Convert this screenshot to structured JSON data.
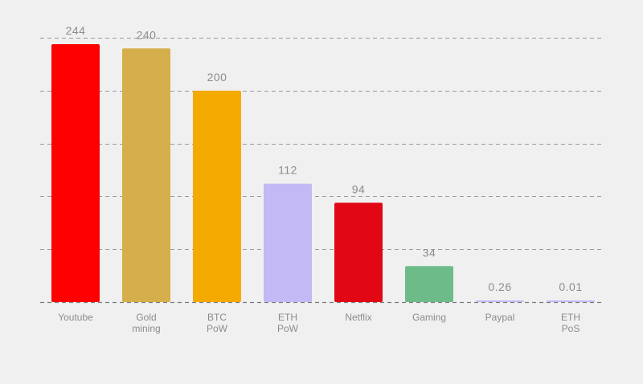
{
  "chart_data": {
    "type": "bar",
    "categories": [
      [
        "Youtube"
      ],
      [
        "Gold",
        "mining"
      ],
      [
        "BTC",
        "PoW"
      ],
      [
        "ETH",
        "PoW"
      ],
      [
        "Netflix"
      ],
      [
        "Gaming"
      ],
      [
        "Paypal"
      ],
      [
        "ETH",
        "PoS"
      ]
    ],
    "values": [
      244,
      240,
      200,
      112,
      94,
      34,
      0.26,
      0.01
    ],
    "value_labels": [
      "244",
      "240",
      "200",
      "112",
      "94",
      "34",
      "0.26",
      "0.01"
    ],
    "colors": [
      "#fe0000",
      "#d5af4b",
      "#f4aa00",
      "#c3b9f4",
      "#e20714",
      "#6ebb8a",
      "#c3b9f4",
      "#c3b9f4"
    ],
    "ylim": [
      0,
      254
    ],
    "grid": true,
    "title": "",
    "xlabel": "",
    "ylabel": ""
  }
}
